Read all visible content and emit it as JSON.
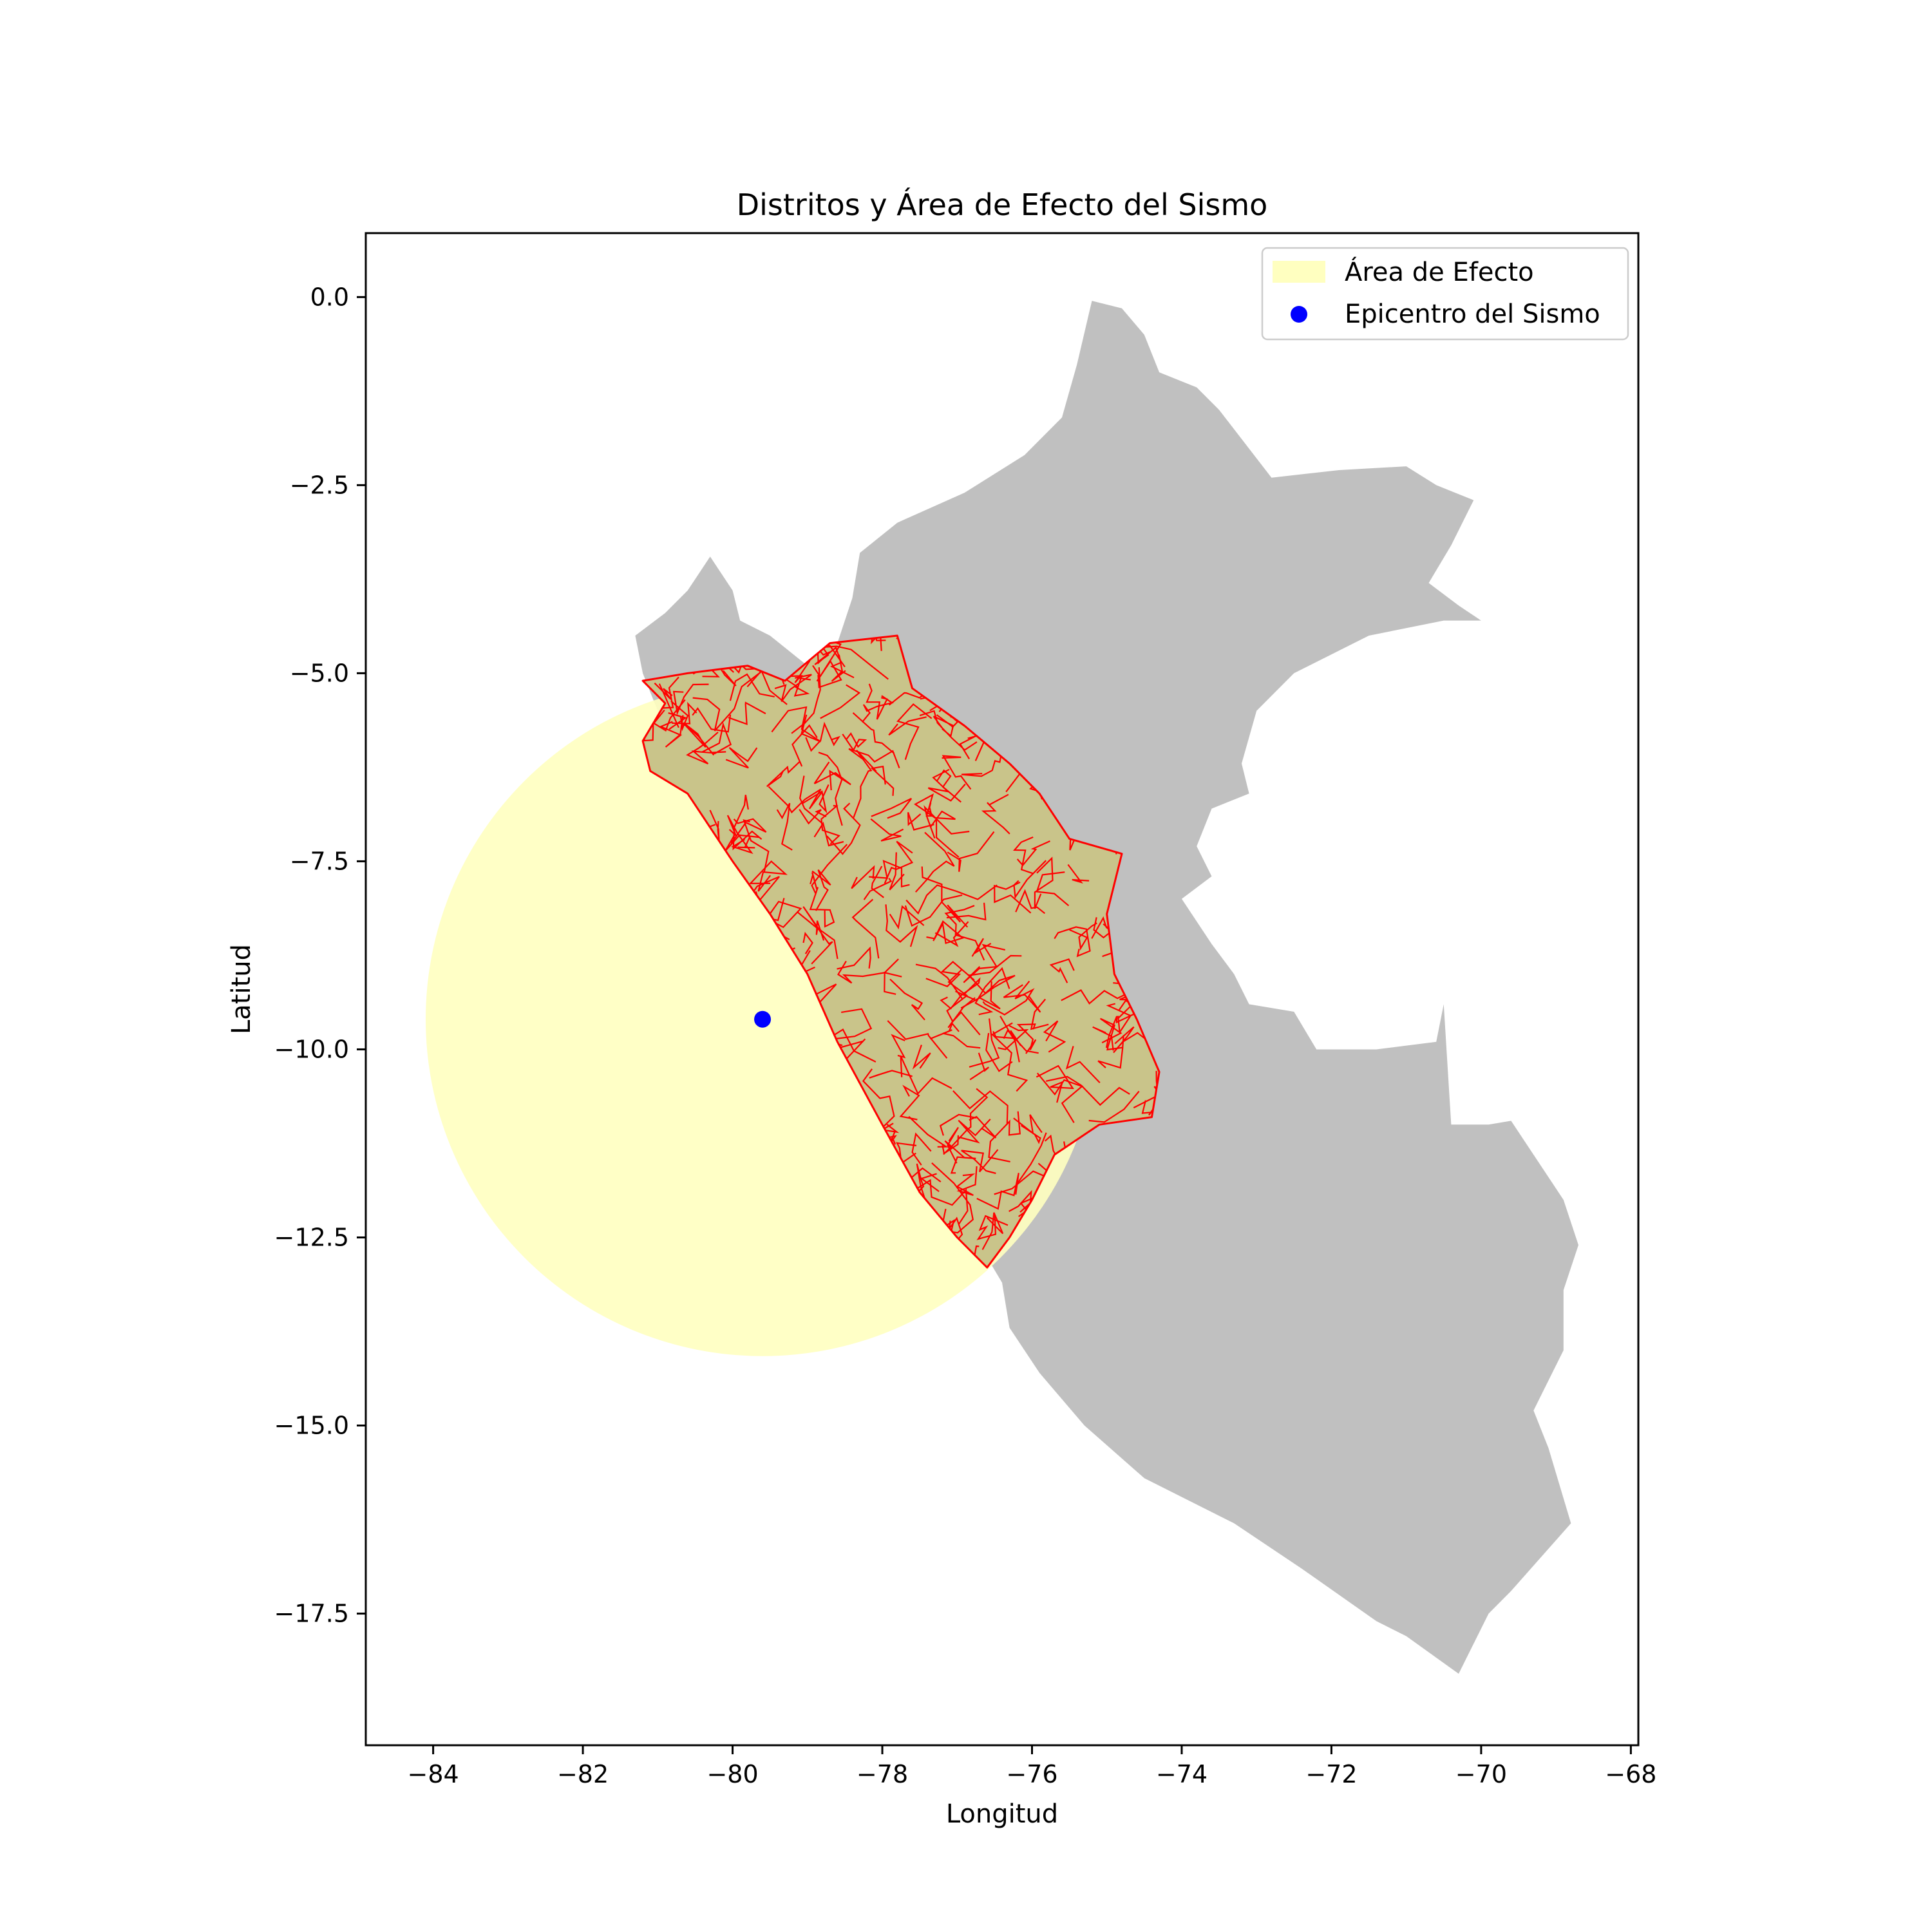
{
  "chart_data": {
    "type": "map",
    "title": "Distritos y Área de Efecto del Sismo",
    "xlabel": "Longitud",
    "ylabel": "Latitud",
    "xlim": [
      -84.9,
      -67.9
    ],
    "ylim": [
      -19.25,
      0.85
    ],
    "xticks": [
      -84,
      -82,
      -80,
      -78,
      -76,
      -74,
      -72,
      -70,
      -68
    ],
    "yticks": [
      0.0,
      -2.5,
      -5.0,
      -7.5,
      -10.0,
      -12.5,
      -15.0,
      -17.5
    ],
    "epicenter": {
      "lon": -79.6,
      "lat": -9.6
    },
    "effect_area": {
      "center_lon": -79.6,
      "center_lat": -9.6,
      "radius_deg": 4.5
    },
    "legend": {
      "position": "upper right",
      "entries": [
        "Área de Efecto",
        "Epicentro del Sismo"
      ]
    },
    "colors": {
      "country": "#c0c0c0",
      "effect_area": "#ffffc0",
      "districts_fill": "#c9c48a",
      "district_edges": "#ff0000",
      "epicenter": "#0000ff"
    },
    "country_outline": [
      [
        -75.2,
        -0.05
      ],
      [
        -74.8,
        -0.15
      ],
      [
        -74.5,
        -0.5
      ],
      [
        -74.3,
        -1.0
      ],
      [
        -73.8,
        -1.2
      ],
      [
        -73.5,
        -1.5
      ],
      [
        -72.8,
        -2.4
      ],
      [
        -71.9,
        -2.3
      ],
      [
        -71.0,
        -2.25
      ],
      [
        -70.6,
        -2.5
      ],
      [
        -70.1,
        -2.7
      ],
      [
        -70.4,
        -3.3
      ],
      [
        -70.7,
        -3.8
      ],
      [
        -70.3,
        -4.1
      ],
      [
        -70.0,
        -4.3
      ],
      [
        -69.9,
        -4.3
      ],
      [
        -70.5,
        -4.3
      ],
      [
        -71.5,
        -4.5
      ],
      [
        -72.5,
        -5.0
      ],
      [
        -73.0,
        -5.5
      ],
      [
        -73.2,
        -6.2
      ],
      [
        -73.1,
        -6.6
      ],
      [
        -73.6,
        -6.8
      ],
      [
        -73.8,
        -7.3
      ],
      [
        -73.6,
        -7.7
      ],
      [
        -74.0,
        -8.0
      ],
      [
        -73.6,
        -8.6
      ],
      [
        -73.3,
        -9.0
      ],
      [
        -73.1,
        -9.4
      ],
      [
        -72.5,
        -9.5
      ],
      [
        -72.2,
        -10.0
      ],
      [
        -71.4,
        -10.0
      ],
      [
        -70.6,
        -9.9
      ],
      [
        -70.5,
        -9.4
      ],
      [
        -70.4,
        -11.0
      ],
      [
        -69.9,
        -11.0
      ],
      [
        -69.6,
        -10.95
      ],
      [
        -68.9,
        -12.0
      ],
      [
        -68.7,
        -12.6
      ],
      [
        -68.9,
        -13.2
      ],
      [
        -68.9,
        -14.0
      ],
      [
        -69.3,
        -14.8
      ],
      [
        -69.1,
        -15.3
      ],
      [
        -68.8,
        -16.3
      ],
      [
        -69.6,
        -17.2
      ],
      [
        -69.9,
        -17.5
      ],
      [
        -70.3,
        -18.3
      ],
      [
        -71.0,
        -17.8
      ],
      [
        -71.4,
        -17.6
      ],
      [
        -72.4,
        -16.9
      ],
      [
        -73.3,
        -16.3
      ],
      [
        -74.5,
        -15.7
      ],
      [
        -75.3,
        -15.0
      ],
      [
        -75.9,
        -14.3
      ],
      [
        -76.3,
        -13.7
      ],
      [
        -76.4,
        -13.1
      ],
      [
        -76.7,
        -12.6
      ],
      [
        -77.3,
        -11.9
      ],
      [
        -77.6,
        -11.3
      ],
      [
        -78.2,
        -10.3
      ],
      [
        -78.7,
        -9.3
      ],
      [
        -79.1,
        -8.5
      ],
      [
        -79.6,
        -7.8
      ],
      [
        -79.9,
        -7.0
      ],
      [
        -80.6,
        -6.5
      ],
      [
        -81.1,
        -6.0
      ],
      [
        -81.0,
        -5.5
      ],
      [
        -81.2,
        -5.0
      ],
      [
        -81.3,
        -4.5
      ],
      [
        -80.9,
        -4.2
      ],
      [
        -80.6,
        -3.9
      ],
      [
        -80.3,
        -3.45
      ],
      [
        -80.0,
        -3.9
      ],
      [
        -79.9,
        -4.3
      ],
      [
        -79.5,
        -4.5
      ],
      [
        -79.0,
        -4.9
      ],
      [
        -78.6,
        -4.6
      ],
      [
        -78.4,
        -4.0
      ],
      [
        -78.3,
        -3.4
      ],
      [
        -77.8,
        -3.0
      ],
      [
        -76.9,
        -2.6
      ],
      [
        -76.1,
        -2.1
      ],
      [
        -75.6,
        -1.6
      ],
      [
        -75.4,
        -0.9
      ],
      [
        -75.2,
        -0.05
      ]
    ],
    "districts_outline": [
      [
        -81.2,
        -5.1
      ],
      [
        -80.6,
        -5.0
      ],
      [
        -79.8,
        -4.9
      ],
      [
        -79.3,
        -5.1
      ],
      [
        -78.7,
        -4.6
      ],
      [
        -77.8,
        -4.5
      ],
      [
        -77.6,
        -5.2
      ],
      [
        -76.9,
        -5.7
      ],
      [
        -76.3,
        -6.2
      ],
      [
        -75.9,
        -6.6
      ],
      [
        -75.5,
        -7.2
      ],
      [
        -74.8,
        -7.4
      ],
      [
        -75.0,
        -8.2
      ],
      [
        -74.9,
        -9.0
      ],
      [
        -74.6,
        -9.6
      ],
      [
        -74.3,
        -10.3
      ],
      [
        -74.4,
        -10.9
      ],
      [
        -75.1,
        -11.0
      ],
      [
        -75.7,
        -11.4
      ],
      [
        -76.0,
        -12.0
      ],
      [
        -76.3,
        -12.5
      ],
      [
        -76.6,
        -12.9
      ],
      [
        -77.0,
        -12.5
      ],
      [
        -77.5,
        -11.9
      ],
      [
        -78.0,
        -11.0
      ],
      [
        -78.6,
        -9.9
      ],
      [
        -79.0,
        -9.0
      ],
      [
        -79.5,
        -8.2
      ],
      [
        -80.0,
        -7.5
      ],
      [
        -80.6,
        -6.6
      ],
      [
        -81.1,
        -6.3
      ],
      [
        -81.2,
        -5.9
      ],
      [
        -80.9,
        -5.4
      ],
      [
        -81.2,
        -5.1
      ]
    ]
  }
}
